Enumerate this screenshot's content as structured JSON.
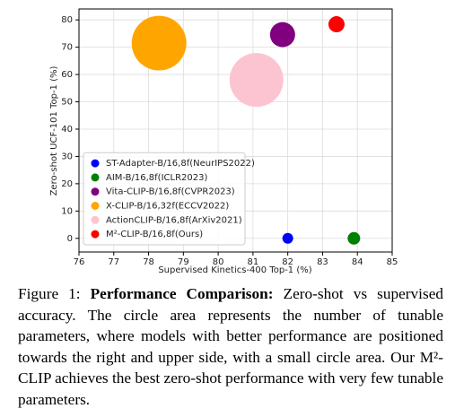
{
  "chart_data": {
    "type": "scatter",
    "xlabel": "Supervised Kinetics-400 Top-1 (%)",
    "ylabel": "Zero-shot UCF-101 Top-1 (%)",
    "xlim": [
      76,
      85
    ],
    "xticks": [
      76,
      77,
      78,
      79,
      80,
      81,
      82,
      83,
      84,
      85
    ],
    "ylim": [
      -5,
      84
    ],
    "yticks": [
      0,
      10,
      20,
      30,
      40,
      50,
      60,
      70,
      80
    ],
    "grid": true,
    "legend": "lower left",
    "series": [
      {
        "name": "ST-Adapter-B/16,8f(NeurIPS2022)",
        "color": "#0000ff",
        "x": [
          82.0
        ],
        "values": [
          0
        ],
        "sizes": [
          36
        ]
      },
      {
        "name": "AIM-B/16,8f(ICLR2023)",
        "color": "#008000",
        "x": [
          83.9
        ],
        "values": [
          0
        ],
        "sizes": [
          49
        ]
      },
      {
        "name": "Vita-CLIP-B/16,8f(CVPR2023)",
        "color": "#800080",
        "x": [
          81.85
        ],
        "values": [
          74.6
        ],
        "sizes": [
          196
        ]
      },
      {
        "name": "X-CLIP-B/16,32f(ECCV2022)",
        "color": "#ffa500",
        "x": [
          78.3
        ],
        "values": [
          71.5
        ],
        "sizes": [
          930
        ]
      },
      {
        "name": "ActionCLIP-B/16,8f(ArXiv2021)",
        "color": "#fcc4d0",
        "x": [
          81.1
        ],
        "values": [
          58
        ],
        "sizes": [
          900
        ]
      },
      {
        "name": "M²-CLIP-B/16,8f(Ours)",
        "color": "#ff0000",
        "x": [
          83.4
        ],
        "values": [
          78.4
        ],
        "sizes": [
          81
        ]
      }
    ]
  },
  "caption": {
    "label": "Figure 1:",
    "heading": "Performance Comparison:",
    "text": "Zero-shot vs supervised accuracy. The circle area represents the number of tunable parameters, where models with better performance are positioned towards the right and upper side, with a small circle area. Our M²-CLIP achieves the best zero-shot performance with very few tunable parameters."
  }
}
